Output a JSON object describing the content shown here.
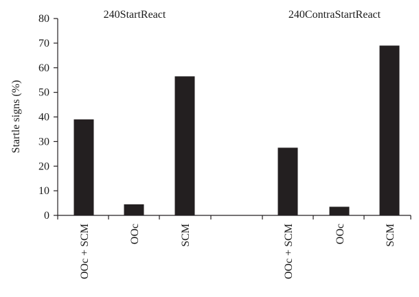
{
  "chart_data": {
    "type": "bar",
    "ylabel": "Startle signs (%)",
    "ylim": [
      0,
      80
    ],
    "yticks": [
      0,
      10,
      20,
      30,
      40,
      50,
      60,
      70,
      80
    ],
    "grid": false,
    "groups": [
      {
        "title": "240StartReact",
        "categories": [
          "OOc + SCM",
          "OOc",
          "SCM"
        ],
        "values": [
          39,
          4.5,
          56.5
        ]
      },
      {
        "title": "240ContraStartReact",
        "categories": [
          "OOc + SCM",
          "OOc",
          "SCM"
        ],
        "values": [
          27.5,
          3.5,
          69
        ]
      }
    ]
  }
}
